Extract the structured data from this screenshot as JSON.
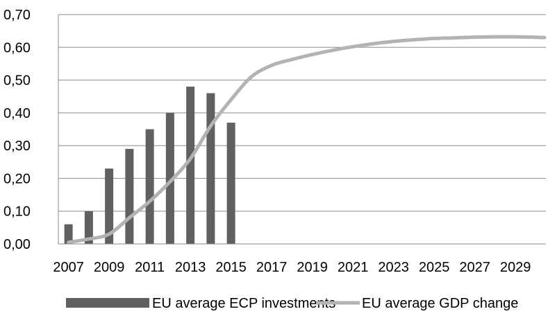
{
  "chart_data": {
    "type": "bar",
    "title": "",
    "xlabel": "",
    "ylabel": "",
    "ylim": [
      0,
      0.7
    ],
    "yticks": [
      "0,00",
      "0,10",
      "0,20",
      "0,30",
      "0,40",
      "0,50",
      "0,60",
      "0,70"
    ],
    "ytick_values": [
      0,
      0.1,
      0.2,
      0.3,
      0.4,
      0.5,
      0.6,
      0.7
    ],
    "grid": true,
    "legend_position": "bottom",
    "categories": [
      "2007",
      "2008",
      "2009",
      "2010",
      "2011",
      "2012",
      "2013",
      "2014",
      "2015",
      "2016",
      "2017",
      "2018",
      "2019",
      "2020",
      "2021",
      "2022",
      "2023",
      "2024",
      "2025",
      "2026",
      "2027",
      "2028",
      "2029",
      "2030"
    ],
    "xtick_labels": [
      "2007",
      "2009",
      "2011",
      "2013",
      "2015",
      "2017",
      "2019",
      "2021",
      "2023",
      "2025",
      "2027",
      "2029"
    ],
    "series": [
      {
        "name": "EU average ECP investments",
        "type": "bar",
        "color": "#606060",
        "values": [
          0.06,
          0.1,
          0.23,
          0.29,
          0.35,
          0.4,
          0.48,
          0.46,
          0.37,
          null,
          null,
          null,
          null,
          null,
          null,
          null,
          null,
          null,
          null,
          null,
          null,
          null,
          null,
          null
        ]
      },
      {
        "name": "EU average GDP change",
        "type": "line",
        "color": "#b3b3b3",
        "values": [
          0.005,
          0.015,
          0.03,
          0.08,
          0.13,
          0.19,
          0.26,
          0.36,
          0.44,
          0.51,
          0.545,
          0.563,
          0.578,
          0.591,
          0.602,
          0.611,
          0.618,
          0.623,
          0.627,
          0.629,
          0.631,
          0.632,
          0.632,
          0.63
        ]
      }
    ]
  }
}
